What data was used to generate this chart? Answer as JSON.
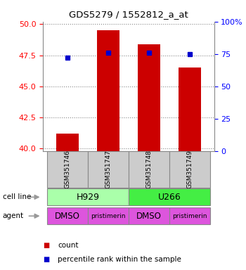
{
  "title": "GDS5279 / 1552812_a_at",
  "samples": [
    "GSM351746",
    "GSM351747",
    "GSM351748",
    "GSM351749"
  ],
  "bar_values": [
    41.2,
    49.5,
    48.4,
    46.5
  ],
  "percentile_values": [
    72,
    76,
    76,
    75
  ],
  "ylim_left": [
    39.8,
    50.2
  ],
  "ylim_right": [
    0,
    100
  ],
  "yticks_left": [
    40,
    42.5,
    45,
    47.5,
    50
  ],
  "yticks_right": [
    0,
    25,
    50,
    75,
    100
  ],
  "ytick_labels_right": [
    "0",
    "25",
    "50",
    "75",
    "100%"
  ],
  "bar_color": "#cc0000",
  "percentile_color": "#0000cc",
  "grid_color": "#888888",
  "bar_width": 0.55,
  "cell_line_labels": [
    "H929",
    "U266"
  ],
  "cell_line_colors": [
    "#aaffaa",
    "#44ee44"
  ],
  "agent_labels": [
    "DMSO",
    "pristimerin",
    "DMSO",
    "pristimerin"
  ],
  "agent_color": "#dd55dd",
  "sample_box_color": "#cccccc",
  "legend_count_color": "#cc0000",
  "legend_pct_color": "#0000cc",
  "bg_color": "#ffffff"
}
